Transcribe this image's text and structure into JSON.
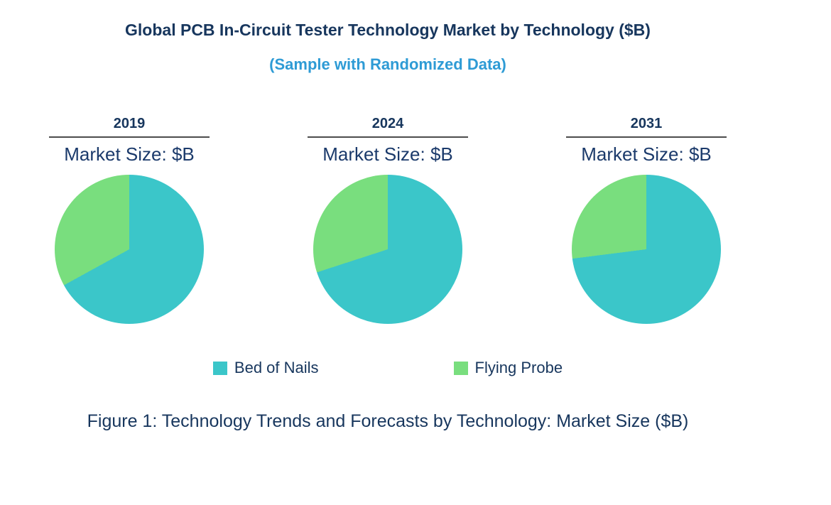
{
  "header": {
    "title": "Global PCB In-Circuit Tester Technology Market by Technology ($B)",
    "subtitle": "(Sample with Randomized Data)"
  },
  "colors": {
    "title_navy": "#17365D",
    "subtitle_blue": "#2E9BD5",
    "bed_of_nails_teal": "#3BC6C9",
    "flying_probe_green": "#79DE7E",
    "header_rule_gray": "#4d4d4d"
  },
  "legend": {
    "items": [
      {
        "label": "Bed of Nails",
        "color": "#3BC6C9"
      },
      {
        "label": "Flying Probe",
        "color": "#79DE7E"
      }
    ]
  },
  "chart_data": [
    {
      "type": "pie",
      "title": "2019",
      "subtitle": "Market Size: $B",
      "labels": [
        "Bed of Nails",
        "Flying Probe"
      ],
      "values": [
        67,
        33
      ],
      "unit": "% share (estimated from slice angles; no numeric labels shown)",
      "colors": [
        "#3BC6C9",
        "#79DE7E"
      ],
      "start_angle_deg": 0,
      "direction": "clockwise",
      "legend_position": "bottom-shared"
    },
    {
      "type": "pie",
      "title": "2024",
      "subtitle": "Market Size: $B",
      "labels": [
        "Bed of Nails",
        "Flying Probe"
      ],
      "values": [
        70,
        30
      ],
      "unit": "% share (estimated from slice angles; no numeric labels shown)",
      "colors": [
        "#3BC6C9",
        "#79DE7E"
      ],
      "start_angle_deg": 0,
      "direction": "clockwise",
      "legend_position": "bottom-shared"
    },
    {
      "type": "pie",
      "title": "2031",
      "subtitle": "Market Size: $B",
      "labels": [
        "Bed of Nails",
        "Flying Probe"
      ],
      "values": [
        73,
        27
      ],
      "unit": "% share (estimated from slice angles; no numeric labels shown)",
      "colors": [
        "#3BC6C9",
        "#79DE7E"
      ],
      "start_angle_deg": 0,
      "direction": "clockwise",
      "legend_position": "bottom-shared"
    }
  ],
  "footer": {
    "caption": "Figure 1: Technology Trends and Forecasts by Technology: Market Size ($B)"
  }
}
